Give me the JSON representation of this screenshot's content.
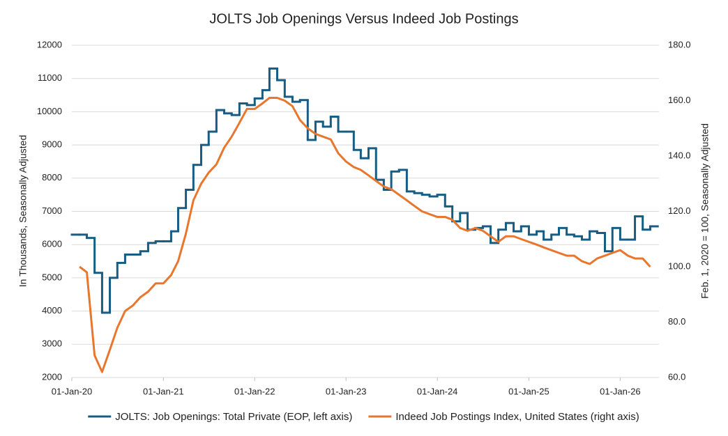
{
  "chart_data": {
    "type": "line",
    "title": "JOLTS Job Openings Versus Indeed Job Postings",
    "y_label": "In Thousands, Seasonally Adjusted",
    "y2_label": "Feb. 1, 2020 = 100, Seasonally Adjusted",
    "xlim": [
      "2020-01-01",
      "2026-06-05"
    ],
    "xticks": [
      {
        "value": "2020-01-01",
        "label": "01-Jan-20"
      },
      {
        "value": "2021-01-01",
        "label": "01-Jan-21"
      },
      {
        "value": "2022-01-01",
        "label": "01-Jan-22"
      },
      {
        "value": "2023-01-01",
        "label": "01-Jan-23"
      },
      {
        "value": "2024-01-01",
        "label": "01-Jan-24"
      },
      {
        "value": "2025-01-01",
        "label": "01-Jan-25"
      },
      {
        "value": "2026-01-01",
        "label": "01-Jan-26"
      }
    ],
    "ylim": [
      2000,
      12000
    ],
    "yticks": [
      2000,
      3000,
      4000,
      5000,
      6000,
      7000,
      8000,
      9000,
      10000,
      11000,
      12000
    ],
    "y2lim": [
      60,
      180
    ],
    "y2ticks": [
      {
        "value": 60,
        "label": "60.0"
      },
      {
        "value": 80,
        "label": "80.0"
      },
      {
        "value": 100,
        "label": "100.0"
      },
      {
        "value": 120,
        "label": "120.0"
      },
      {
        "value": 140,
        "label": "140.0"
      },
      {
        "value": 160,
        "label": "160.0"
      },
      {
        "value": 180,
        "label": "180.0"
      }
    ],
    "grid": true,
    "legend": "bottom",
    "series": [
      {
        "name": "JOLTS: Job Openings: Total Private (EOP, left axis)",
        "color": "#175c83",
        "step": "post",
        "x": [
          "2020-01-01",
          "2020-02-01",
          "2020-03-01",
          "2020-04-01",
          "2020-05-01",
          "2020-06-01",
          "2020-07-01",
          "2020-08-01",
          "2020-09-01",
          "2020-10-01",
          "2020-11-01",
          "2020-12-01",
          "2021-01-01",
          "2021-02-01",
          "2021-03-01",
          "2021-04-01",
          "2021-05-01",
          "2021-06-01",
          "2021-07-01",
          "2021-08-01",
          "2021-09-01",
          "2021-10-01",
          "2021-11-01",
          "2021-12-01",
          "2022-01-01",
          "2022-02-01",
          "2022-03-01",
          "2022-04-01",
          "2022-05-01",
          "2022-06-01",
          "2022-07-01",
          "2022-08-01",
          "2022-09-01",
          "2022-10-01",
          "2022-11-01",
          "2022-12-01",
          "2023-01-01",
          "2023-02-01",
          "2023-03-01",
          "2023-04-01",
          "2023-05-01",
          "2023-06-01",
          "2023-07-01",
          "2023-08-01",
          "2023-09-01",
          "2023-10-01",
          "2023-11-01",
          "2023-12-01",
          "2024-01-01",
          "2024-02-01",
          "2024-03-01",
          "2024-04-01",
          "2024-05-01",
          "2024-06-01",
          "2024-07-01",
          "2024-08-01",
          "2024-09-01",
          "2024-10-01",
          "2024-11-01",
          "2024-12-01",
          "2025-01-01",
          "2025-02-01",
          "2025-03-01",
          "2025-04-01",
          "2025-05-01",
          "2025-06-01",
          "2025-07-01",
          "2025-08-01",
          "2025-09-01",
          "2025-10-01",
          "2025-11-01",
          "2025-12-01",
          "2026-01-01",
          "2026-02-01",
          "2026-03-01",
          "2026-04-01",
          "2026-05-01"
        ],
        "values": [
          6300,
          6300,
          6200,
          5150,
          3950,
          5000,
          5450,
          5700,
          5700,
          5800,
          6050,
          6100,
          6100,
          6400,
          7100,
          7650,
          8400,
          9000,
          9400,
          10050,
          9950,
          9900,
          10250,
          10200,
          10400,
          10650,
          11300,
          10950,
          10450,
          10300,
          10350,
          9150,
          9700,
          9550,
          9850,
          9400,
          9400,
          8850,
          8600,
          8900,
          7950,
          7650,
          8200,
          8250,
          7600,
          7550,
          7500,
          7450,
          7500,
          7150,
          6700,
          6950,
          6450,
          6500,
          6550,
          6050,
          6450,
          6650,
          6400,
          6550,
          6300,
          6400,
          6150,
          6300,
          6500,
          6300,
          6250,
          6150,
          6400,
          6350,
          5800,
          6500,
          6150,
          6150,
          6850,
          6450,
          6550
        ]
      },
      {
        "name": "Indeed Job Postings Index, United States  (right axis)",
        "color": "#e8762d",
        "axis": "y2",
        "x": [
          "2020-02-01",
          "2020-03-01",
          "2020-04-01",
          "2020-05-01",
          "2020-06-01",
          "2020-07-01",
          "2020-08-01",
          "2020-09-01",
          "2020-10-01",
          "2020-11-01",
          "2020-12-01",
          "2021-01-01",
          "2021-02-01",
          "2021-03-01",
          "2021-04-01",
          "2021-05-01",
          "2021-06-01",
          "2021-07-01",
          "2021-08-01",
          "2021-09-01",
          "2021-10-01",
          "2021-11-01",
          "2021-12-01",
          "2022-01-01",
          "2022-02-01",
          "2022-03-01",
          "2022-04-01",
          "2022-05-01",
          "2022-06-01",
          "2022-07-01",
          "2022-08-01",
          "2022-09-01",
          "2022-10-01",
          "2022-11-01",
          "2022-12-01",
          "2023-01-01",
          "2023-02-01",
          "2023-03-01",
          "2023-04-01",
          "2023-05-01",
          "2023-06-01",
          "2023-07-01",
          "2023-08-01",
          "2023-09-01",
          "2023-10-01",
          "2023-11-01",
          "2023-12-01",
          "2024-01-01",
          "2024-02-01",
          "2024-03-01",
          "2024-04-01",
          "2024-05-01",
          "2024-06-01",
          "2024-07-01",
          "2024-08-01",
          "2024-09-01",
          "2024-10-01",
          "2024-11-01",
          "2024-12-01",
          "2025-01-01",
          "2025-02-01",
          "2025-03-01",
          "2025-04-01",
          "2025-05-01",
          "2025-06-01",
          "2025-07-01",
          "2025-08-01",
          "2025-09-01",
          "2025-10-01",
          "2025-11-01",
          "2025-12-01",
          "2026-01-01",
          "2026-02-01",
          "2026-03-01",
          "2026-04-01",
          "2026-05-01"
        ],
        "values": [
          100,
          98,
          68,
          62,
          70,
          78,
          84,
          86,
          89,
          91,
          94,
          94,
          97,
          102,
          112,
          124,
          130,
          134,
          137,
          143,
          147,
          152,
          157,
          157,
          159,
          161,
          161,
          160,
          158,
          153,
          150,
          148,
          147,
          146,
          141,
          138,
          136,
          135,
          133,
          131,
          129,
          128,
          126,
          124,
          122,
          120,
          119,
          118,
          118,
          117,
          114,
          113,
          114,
          113,
          111,
          109,
          111,
          111,
          110,
          109,
          108,
          107,
          106,
          105,
          104,
          104,
          102,
          101,
          103,
          104,
          105,
          106,
          104,
          103,
          103,
          100
        ]
      }
    ]
  }
}
